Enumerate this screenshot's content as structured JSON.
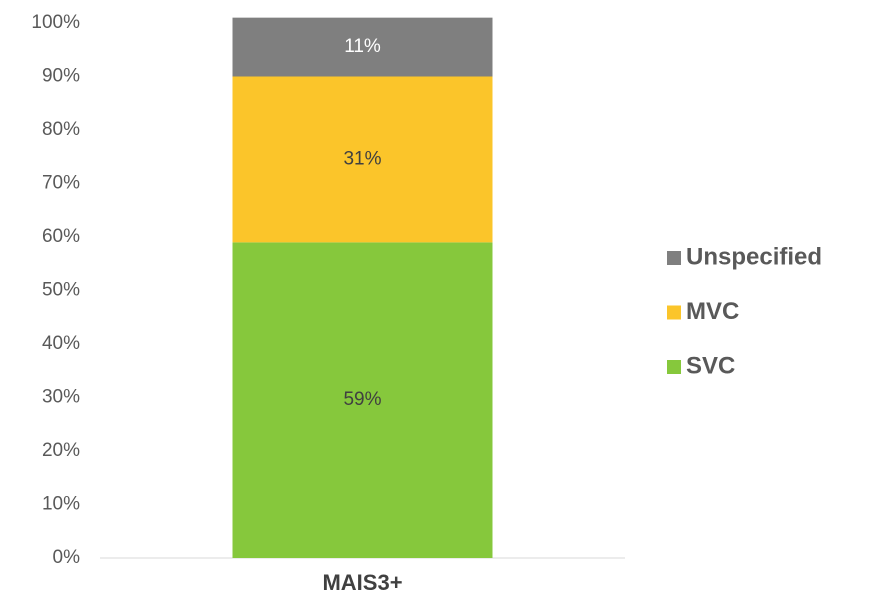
{
  "chart_data": {
    "type": "stacked_bar",
    "categories": [
      "MAIS3+"
    ],
    "series": [
      {
        "name": "SVC",
        "color": "#86c83c",
        "values": [
          59
        ],
        "value_labels": [
          "59%"
        ]
      },
      {
        "name": "MVC",
        "color": "#fbc52a",
        "values": [
          31
        ],
        "value_labels": [
          "31%"
        ]
      },
      {
        "name": "Unspecified",
        "color": "#7f7f7f",
        "values": [
          11
        ],
        "value_labels": [
          "11%"
        ]
      }
    ],
    "ylim": [
      0,
      100
    ],
    "yticks": [
      {
        "value": 0,
        "label": "0%"
      },
      {
        "value": 10,
        "label": "10%"
      },
      {
        "value": 20,
        "label": "20%"
      },
      {
        "value": 30,
        "label": "30%"
      },
      {
        "value": 40,
        "label": "40%"
      },
      {
        "value": 50,
        "label": "50%"
      },
      {
        "value": 60,
        "label": "60%"
      },
      {
        "value": 70,
        "label": "70%"
      },
      {
        "value": 80,
        "label": "80%"
      },
      {
        "value": 90,
        "label": "90%"
      },
      {
        "value": 100,
        "label": "100%"
      }
    ],
    "grid": false,
    "legend": "right"
  }
}
